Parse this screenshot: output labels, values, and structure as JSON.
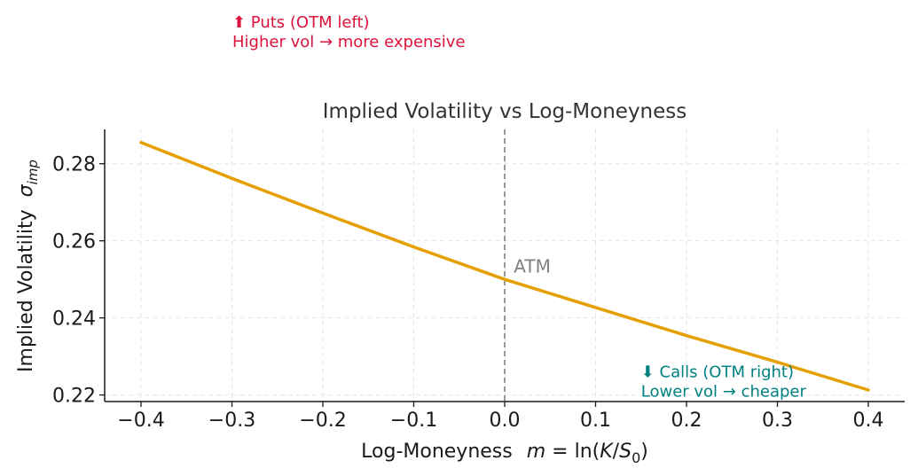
{
  "chart_data": {
    "type": "line",
    "title": "Implied Volatility vs Log-Moneyness",
    "xlabel": {
      "text": "Log-Moneyness",
      "math_m": "m",
      "math_eq": " = ln(",
      "math_K": "K",
      "math_slash": "/",
      "math_S": "S",
      "math_sub": "0",
      "math_close": ")"
    },
    "ylabel": {
      "text": "Implied Volatility",
      "math_sigma": "σ",
      "math_sub": "imp"
    },
    "xlim": [
      -0.44,
      0.44
    ],
    "ylim": [
      0.2183,
      0.2889
    ],
    "x_ticks": [
      {
        "value": -0.4,
        "label": "−0.4"
      },
      {
        "value": -0.3,
        "label": "−0.3"
      },
      {
        "value": -0.2,
        "label": "−0.2"
      },
      {
        "value": -0.1,
        "label": "−0.1"
      },
      {
        "value": 0.0,
        "label": "0.0"
      },
      {
        "value": 0.1,
        "label": "0.1"
      },
      {
        "value": 0.2,
        "label": "0.2"
      },
      {
        "value": 0.3,
        "label": "0.3"
      },
      {
        "value": 0.4,
        "label": "0.4"
      }
    ],
    "y_ticks": [
      {
        "value": 0.22,
        "label": "0.22"
      },
      {
        "value": 0.24,
        "label": "0.24"
      },
      {
        "value": 0.26,
        "label": "0.26"
      },
      {
        "value": 0.28,
        "label": "0.28"
      }
    ],
    "grid": true,
    "series": [
      {
        "color": "#e69f00",
        "x": [
          -0.4,
          -0.3,
          -0.2,
          -0.1,
          0.0,
          0.1,
          0.2,
          0.3,
          0.4
        ],
        "y": [
          0.2855,
          0.2762,
          0.2672,
          0.2584,
          0.25,
          0.2427,
          0.2354,
          0.2285,
          0.2213
        ]
      }
    ],
    "vline": {
      "x": 0.0,
      "color": "#7f7f7f",
      "label": "ATM",
      "label_x": 0.01,
      "label_y": 0.2518
    },
    "annotations": [
      {
        "id": "puts",
        "lines": [
          "⬆ Puts (OTM left)",
          "Higher vol → more expensive"
        ],
        "color": "#dc143c"
      },
      {
        "id": "calls",
        "lines": [
          "⬇ Calls (OTM right)",
          "Lower vol → cheaper"
        ],
        "color": "#008080",
        "x": 0.15,
        "y": 0.2246
      }
    ]
  }
}
